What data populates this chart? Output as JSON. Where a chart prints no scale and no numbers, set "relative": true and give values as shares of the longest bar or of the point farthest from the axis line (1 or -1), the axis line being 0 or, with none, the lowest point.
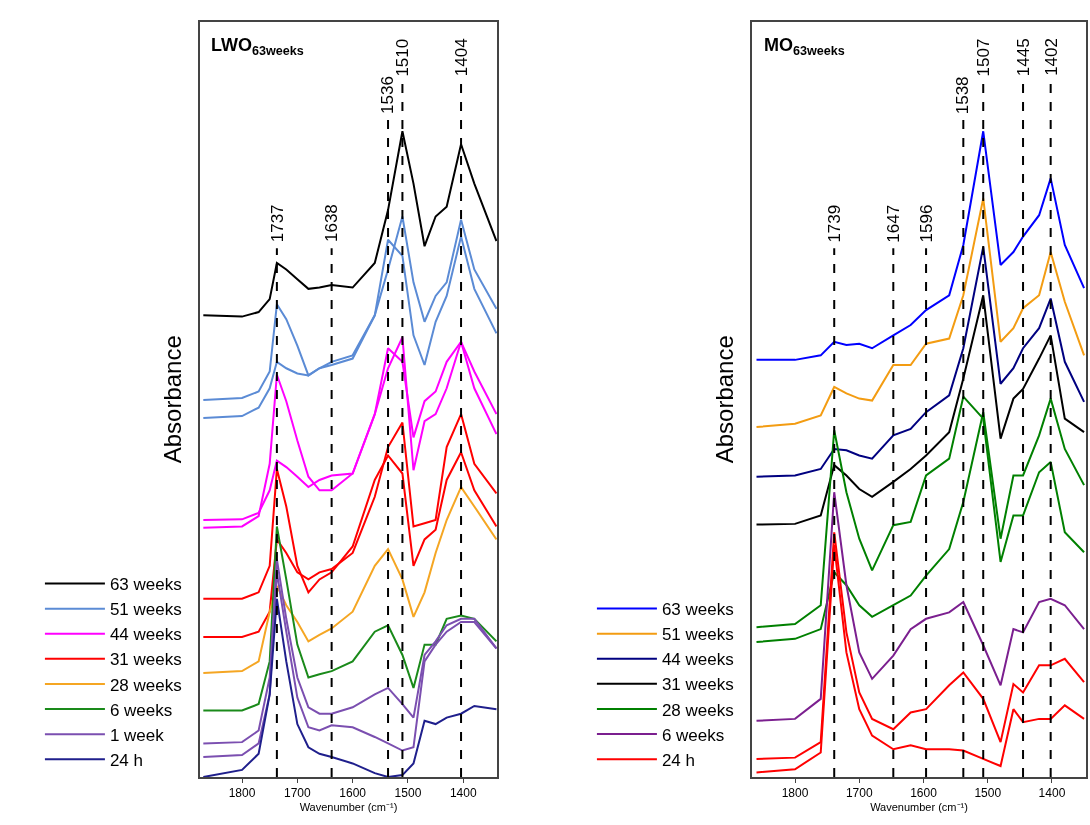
{
  "chart_data": [
    {
      "type": "line",
      "title": "LWO$_{63weeks}$",
      "xlabel": "Wavenumber (cm⁻¹)",
      "ylabel": "Absorbance",
      "relative": true,
      "legend": "bottom left",
      "x": [
        1870,
        1800,
        1770,
        1750,
        1737,
        1720,
        1700,
        1680,
        1660,
        1638,
        1600,
        1560,
        1536,
        1510,
        1490,
        1470,
        1450,
        1430,
        1404,
        1380,
        1340
      ],
      "xlim": [
        1876,
        1339
      ],
      "xticks": [
        1800,
        1700,
        1600,
        1500,
        1400
      ],
      "series": [
        {
          "name": "63 weeks",
          "color": "#000000",
          "values": [
            0.715,
            0.713,
            0.72,
            0.74,
            0.796,
            0.786,
            0.771,
            0.756,
            0.758,
            0.762,
            0.758,
            0.796,
            0.878,
            1.0,
            0.919,
            0.822,
            0.868,
            0.883,
            0.98,
            0.919,
            0.83
          ]
        },
        {
          "name": "51 weeks",
          "color": "#5b8bd5",
          "values": [
            0.584,
            0.587,
            0.597,
            0.628,
            0.732,
            0.709,
            0.668,
            0.622,
            0.633,
            0.643,
            0.653,
            0.715,
            0.786,
            0.868,
            0.766,
            0.705,
            0.745,
            0.766,
            0.863,
            0.786,
            0.725
          ]
        },
        {
          "color": "#5b8bd5",
          "values": [
            0.556,
            0.559,
            0.572,
            0.602,
            0.643,
            0.633,
            0.625,
            0.622,
            0.633,
            0.638,
            0.648,
            0.715,
            0.832,
            0.807,
            0.684,
            0.638,
            0.705,
            0.745,
            0.837,
            0.756,
            0.687
          ]
        },
        {
          "name": "44 weeks",
          "color": "#ff00ff",
          "values": [
            0.386,
            0.388,
            0.404,
            0.485,
            0.623,
            0.582,
            0.521,
            0.465,
            0.444,
            0.444,
            0.47,
            0.562,
            0.633,
            0.681,
            0.475,
            0.551,
            0.562,
            0.602,
            0.674,
            0.602,
            0.531
          ]
        },
        {
          "color": "#ff00ff",
          "values": [
            0.398,
            0.399,
            0.409,
            0.444,
            0.49,
            0.48,
            0.465,
            0.449,
            0.46,
            0.467,
            0.47,
            0.562,
            0.664,
            0.643,
            0.526,
            0.582,
            0.597,
            0.643,
            0.674,
            0.628,
            0.562
          ]
        },
        {
          "name": "31 weeks",
          "color": "#ff0000",
          "values": [
            0.276,
            0.276,
            0.286,
            0.327,
            0.477,
            0.419,
            0.327,
            0.286,
            0.306,
            0.317,
            0.357,
            0.46,
            0.498,
            0.47,
            0.327,
            0.368,
            0.383,
            0.46,
            0.503,
            0.444,
            0.388
          ]
        },
        {
          "color": "#ff0000",
          "values": [
            0.217,
            0.217,
            0.225,
            0.256,
            0.368,
            0.347,
            0.317,
            0.306,
            0.317,
            0.322,
            0.347,
            0.434,
            0.511,
            0.549,
            0.388,
            0.393,
            0.398,
            0.511,
            0.562,
            0.485,
            0.439
          ]
        },
        {
          "name": "28 weeks",
          "color": "#f5a623",
          "values": [
            0.161,
            0.164,
            0.179,
            0.256,
            0.296,
            0.266,
            0.24,
            0.21,
            0.22,
            0.23,
            0.256,
            0.327,
            0.353,
            0.306,
            0.248,
            0.286,
            0.347,
            0.398,
            0.449,
            0.419,
            0.368
          ]
        },
        {
          "name": "6 weeks",
          "color": "#1a8a1a",
          "values": [
            0.103,
            0.103,
            0.113,
            0.179,
            0.388,
            0.306,
            0.205,
            0.154,
            0.159,
            0.164,
            0.179,
            0.225,
            0.235,
            0.189,
            0.138,
            0.205,
            0.205,
            0.245,
            0.25,
            0.245,
            0.21
          ]
        },
        {
          "name": "1 week",
          "color": "#7b4fb0",
          "values": [
            0.052,
            0.054,
            0.072,
            0.154,
            0.337,
            0.245,
            0.154,
            0.108,
            0.098,
            0.098,
            0.108,
            0.128,
            0.138,
            0.113,
            0.092,
            0.189,
            0.21,
            0.235,
            0.245,
            0.245,
            0.199
          ]
        },
        {
          "color": "#7b4fb0",
          "values": [
            0.031,
            0.034,
            0.052,
            0.128,
            0.317,
            0.225,
            0.123,
            0.077,
            0.072,
            0.08,
            0.077,
            0.062,
            0.052,
            0.041,
            0.046,
            0.179,
            0.205,
            0.225,
            0.24,
            0.24,
            0.199
          ]
        },
        {
          "name": "24 h",
          "color": "#1f1f8c",
          "values": [
            0.0,
            0.011,
            0.036,
            0.128,
            0.276,
            0.179,
            0.082,
            0.046,
            0.036,
            0.031,
            0.021,
            0.006,
            0.0,
            0.003,
            0.021,
            0.087,
            0.082,
            0.092,
            0.098,
            0.11,
            0.105
          ]
        }
      ],
      "ref_lines": [
        {
          "axis": "x",
          "value": 1737,
          "label": "1737",
          "color": "#000000",
          "line_style": "dashed"
        },
        {
          "axis": "x",
          "value": 1638,
          "label": "1638",
          "color": "#000000",
          "line_style": "dashed"
        },
        {
          "axis": "x",
          "value": 1536,
          "label": "1536",
          "color": "#000000",
          "line_style": "dashed"
        },
        {
          "axis": "x",
          "value": 1510,
          "label": "1510",
          "color": "#000000",
          "line_style": "dashed"
        },
        {
          "axis": "x",
          "value": 1404,
          "label": "1404",
          "color": "#000000",
          "line_style": "dashed"
        }
      ]
    },
    {
      "type": "line",
      "title": "MO$_{63weeks}$",
      "xlabel": "Wavenumber (cm⁻¹)",
      "ylabel": "Absorbance",
      "relative": true,
      "legend": "bottom left",
      "x": [
        1860,
        1800,
        1760,
        1739,
        1720,
        1700,
        1680,
        1647,
        1620,
        1596,
        1560,
        1538,
        1507,
        1480,
        1460,
        1445,
        1420,
        1402,
        1380,
        1350
      ],
      "xlim": [
        1867,
        1347
      ],
      "xticks": [
        1800,
        1700,
        1600,
        1500,
        1400
      ],
      "series": [
        {
          "name": "63 weeks",
          "color": "#0000ff",
          "values": [
            0.646,
            0.646,
            0.653,
            0.674,
            0.669,
            0.671,
            0.664,
            0.684,
            0.7,
            0.723,
            0.746,
            0.824,
            1.0,
            0.793,
            0.813,
            0.837,
            0.87,
            0.927,
            0.824,
            0.757
          ]
        },
        {
          "name": "51 weeks",
          "color": "#f39c12",
          "values": [
            0.542,
            0.547,
            0.56,
            0.604,
            0.594,
            0.586,
            0.583,
            0.638,
            0.638,
            0.671,
            0.679,
            0.746,
            0.896,
            0.674,
            0.695,
            0.726,
            0.746,
            0.813,
            0.736,
            0.653
          ]
        },
        {
          "name": "44 weeks",
          "color": "#000080",
          "values": [
            0.465,
            0.467,
            0.477,
            0.508,
            0.506,
            0.498,
            0.493,
            0.529,
            0.539,
            0.565,
            0.591,
            0.664,
            0.821,
            0.609,
            0.633,
            0.664,
            0.695,
            0.741,
            0.643,
            0.581
          ]
        },
        {
          "name": "31 weeks",
          "color": "#000000",
          "values": [
            0.391,
            0.392,
            0.405,
            0.483,
            0.467,
            0.446,
            0.434,
            0.457,
            0.477,
            0.498,
            0.534,
            0.617,
            0.746,
            0.524,
            0.586,
            0.601,
            0.648,
            0.684,
            0.555,
            0.534
          ]
        },
        {
          "name": "28 weeks",
          "color": "#008000",
          "values": [
            0.232,
            0.237,
            0.266,
            0.537,
            0.441,
            0.369,
            0.32,
            0.39,
            0.395,
            0.467,
            0.493,
            0.589,
            0.555,
            0.333,
            0.405,
            0.405,
            0.472,
            0.488,
            0.379,
            0.348
          ]
        },
        {
          "color": "#008000",
          "values": [
            0.209,
            0.214,
            0.229,
            0.317,
            0.297,
            0.266,
            0.248,
            0.266,
            0.281,
            0.312,
            0.353,
            0.426,
            0.565,
            0.369,
            0.467,
            0.467,
            0.529,
            0.586,
            0.508,
            0.452
          ]
        },
        {
          "name": "6 weeks",
          "color": "#7b1f8f",
          "values": [
            0.087,
            0.09,
            0.121,
            0.441,
            0.297,
            0.193,
            0.152,
            0.188,
            0.229,
            0.245,
            0.255,
            0.271,
            0.204,
            0.142,
            0.229,
            0.224,
            0.271,
            0.276,
            0.266,
            0.229
          ]
        },
        {
          "name": "24 h",
          "color": "#ff0000",
          "values": [
            0.028,
            0.03,
            0.054,
            0.379,
            0.224,
            0.131,
            0.09,
            0.074,
            0.1,
            0.105,
            0.142,
            0.162,
            0.121,
            0.054,
            0.144,
            0.131,
            0.173,
            0.173,
            0.183,
            0.147
          ]
        },
        {
          "color": "#ff0000",
          "values": [
            0.007,
            0.012,
            0.038,
            0.359,
            0.193,
            0.105,
            0.064,
            0.043,
            0.049,
            0.043,
            0.043,
            0.041,
            0.028,
            0.017,
            0.105,
            0.085,
            0.09,
            0.09,
            0.111,
            0.09
          ]
        }
      ],
      "ref_lines": [
        {
          "axis": "x",
          "value": 1739,
          "label": "1739",
          "color": "#000000",
          "line_style": "dashed"
        },
        {
          "axis": "x",
          "value": 1647,
          "label": "1647",
          "color": "#000000",
          "line_style": "dashed"
        },
        {
          "axis": "x",
          "value": 1596,
          "label": "1596",
          "color": "#000000",
          "line_style": "dashed"
        },
        {
          "axis": "x",
          "value": 1538,
          "label": "1538",
          "color": "#000000",
          "line_style": "dashed"
        },
        {
          "axis": "x",
          "value": 1507,
          "label": "1507",
          "color": "#000000",
          "line_style": "dashed"
        },
        {
          "axis": "x",
          "value": 1445,
          "label": "1445",
          "color": "#000000",
          "line_style": "dashed"
        },
        {
          "axis": "x",
          "value": 1402,
          "label": "1402",
          "color": "#000000",
          "line_style": "dashed"
        }
      ]
    }
  ]
}
